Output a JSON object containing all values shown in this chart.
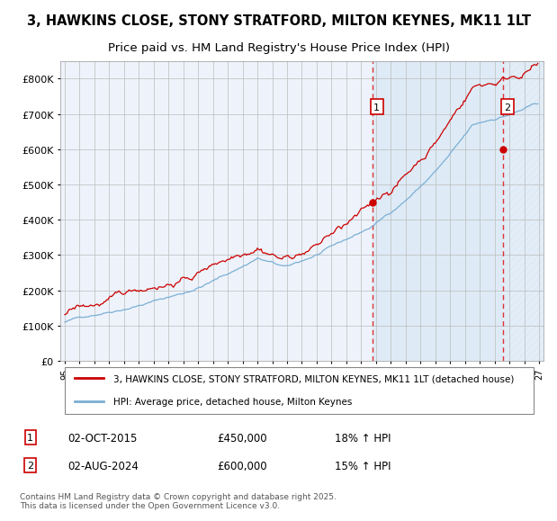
{
  "title_line1": "3, HAWKINS CLOSE, STONY STRATFORD, MILTON KEYNES, MK11 1LT",
  "title_line2": "Price paid vs. HM Land Registry's House Price Index (HPI)",
  "ylim": [
    0,
    850000
  ],
  "yticks": [
    0,
    100000,
    200000,
    300000,
    400000,
    500000,
    600000,
    700000,
    800000
  ],
  "ytick_labels": [
    "£0",
    "£100K",
    "£200K",
    "£300K",
    "£400K",
    "£500K",
    "£600K",
    "£700K",
    "£800K"
  ],
  "x_start_year": 1995,
  "x_end_year": 2027,
  "marker1_year": 2015.75,
  "marker1_price": 450000,
  "marker2_year": 2024.58,
  "marker2_price": 600000,
  "red_line_color": "#cc0000",
  "blue_line_color": "#7bafd4",
  "bg_color": "#ffffff",
  "plot_bg_color": "#eef3fb",
  "shade_color": "#d8e8f5",
  "hatch_color": "#c8d8ea",
  "grid_color": "#bbbbbb",
  "dashed_line_color": "#dd3333",
  "legend_label_red": "3, HAWKINS CLOSE, STONY STRATFORD, MILTON KEYNES, MK11 1LT (detached house)",
  "legend_label_blue": "HPI: Average price, detached house, Milton Keynes",
  "footnote": "Contains HM Land Registry data © Crown copyright and database right 2025.\nThis data is licensed under the Open Government Licence v3.0.",
  "title_fontsize": 10.5,
  "subtitle_fontsize": 9.5
}
